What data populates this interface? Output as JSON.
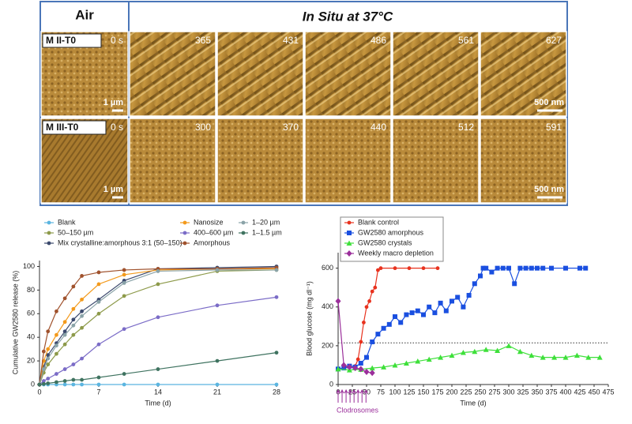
{
  "image_panel": {
    "header_air": "Air",
    "header_in_situ": "In Situ at 37°C",
    "rows": [
      {
        "label": "M II-T0",
        "times": [
          "0 s",
          "365",
          "431",
          "486",
          "561",
          "627"
        ],
        "scale_air": "1 µm",
        "scale_in_situ": "500 nm"
      },
      {
        "label": "M III-T0",
        "times": [
          "0 s",
          "300",
          "370",
          "440",
          "512",
          "591"
        ],
        "scale_air": "1 µm",
        "scale_in_situ": "500 nm"
      }
    ]
  },
  "chart_data": [
    {
      "type": "line",
      "x_label": "Time (d)",
      "y_label": "Cumulative GW2580 release (%)",
      "x": [
        0,
        0.5,
        1,
        2,
        3,
        4,
        5,
        7,
        10,
        14,
        21,
        28
      ],
      "xlim": [
        0,
        28
      ],
      "xticks": [
        0,
        7,
        14,
        21,
        28
      ],
      "ylim": [
        0,
        105
      ],
      "yticks": [
        0,
        20,
        40,
        60,
        80,
        100
      ],
      "series": [
        {
          "name": "Blank",
          "color": "#5bb5e0",
          "values": [
            0,
            0,
            0,
            0,
            0,
            0,
            0,
            0,
            0,
            0,
            0,
            0
          ]
        },
        {
          "name": "50–150 µm",
          "color": "#8d9a4a",
          "values": [
            0,
            10,
            17,
            26,
            34,
            42,
            48,
            60,
            75,
            85,
            96,
            97
          ]
        },
        {
          "name": "Mix crystalline:amorphous 3:1 (50–150)",
          "color": "#3c4a6e",
          "values": [
            0,
            15,
            25,
            35,
            45,
            55,
            62,
            72,
            88,
            98,
            99,
            100
          ]
        },
        {
          "name": "Nanosize",
          "color": "#f39a1c",
          "values": [
            0,
            20,
            30,
            42,
            53,
            64,
            72,
            85,
            93,
            97,
            98,
            98
          ]
        },
        {
          "name": "400–600 µm",
          "color": "#7b6cc7",
          "values": [
            0,
            3,
            5,
            9,
            13,
            17,
            22,
            34,
            47,
            57,
            67,
            74
          ]
        },
        {
          "name": "Amorphous",
          "color": "#a0522d",
          "values": [
            0,
            28,
            45,
            62,
            73,
            83,
            92,
            95,
            97,
            98,
            98,
            99
          ]
        },
        {
          "name": "1–20 µm",
          "color": "#8aa3a8",
          "values": [
            0,
            13,
            22,
            33,
            42,
            50,
            58,
            70,
            86,
            96,
            97,
            97
          ]
        },
        {
          "name": "1–1.5 µm",
          "color": "#3f7360",
          "values": [
            0,
            0.5,
            1,
            2,
            3,
            4,
            4,
            6,
            9,
            13,
            20,
            27
          ]
        }
      ]
    },
    {
      "type": "line",
      "x_label": "Time (d)",
      "y_label": "Blood glucose (mg dl⁻¹)",
      "xlim": [
        0,
        475
      ],
      "xticks": [
        0,
        25,
        50,
        75,
        100,
        125,
        150,
        175,
        200,
        225,
        250,
        275,
        300,
        325,
        350,
        375,
        400,
        425,
        450,
        475
      ],
      "ylim": [
        0,
        680
      ],
      "yticks": [
        0,
        200,
        400,
        600
      ],
      "hline": 215,
      "annotation": "Clodrosomes",
      "annotation_days": [
        0,
        7,
        14,
        21,
        28,
        35,
        42,
        49
      ],
      "series": [
        {
          "name": "Blank control",
          "color": "#e8321e",
          "marker": "circle",
          "x": [
            0,
            10,
            20,
            30,
            35,
            40,
            45,
            50,
            55,
            60,
            65,
            70,
            75,
            100,
            125,
            150,
            175
          ],
          "values": [
            80,
            85,
            90,
            95,
            130,
            220,
            320,
            400,
            430,
            480,
            500,
            590,
            600,
            600,
            600,
            600,
            600
          ]
        },
        {
          "name": "GW2580 amorphous",
          "color": "#1a4fe0",
          "marker": "square",
          "x": [
            0,
            10,
            20,
            30,
            40,
            50,
            60,
            70,
            80,
            90,
            100,
            110,
            120,
            130,
            140,
            150,
            160,
            170,
            180,
            190,
            200,
            210,
            220,
            230,
            240,
            250,
            255,
            260,
            270,
            280,
            290,
            300,
            310,
            320,
            330,
            340,
            350,
            360,
            375,
            400,
            425,
            435
          ],
          "values": [
            80,
            85,
            95,
            90,
            110,
            140,
            220,
            260,
            290,
            310,
            350,
            320,
            360,
            370,
            380,
            360,
            400,
            370,
            420,
            380,
            430,
            450,
            400,
            460,
            520,
            560,
            600,
            600,
            580,
            600,
            600,
            600,
            520,
            600,
            600,
            600,
            600,
            600,
            600,
            600,
            600,
            600
          ]
        },
        {
          "name": "GW2580 crystals",
          "color": "#3ee03a",
          "marker": "triangle",
          "x": [
            0,
            20,
            40,
            60,
            80,
            100,
            120,
            140,
            160,
            180,
            200,
            220,
            240,
            260,
            280,
            300,
            320,
            340,
            360,
            380,
            400,
            420,
            440,
            460
          ],
          "values": [
            80,
            75,
            78,
            85,
            90,
            100,
            110,
            120,
            130,
            140,
            150,
            165,
            170,
            180,
            175,
            200,
            170,
            150,
            140,
            140,
            140,
            150,
            140,
            140
          ]
        },
        {
          "name": "Weekly macro depletion",
          "color": "#9b2f9b",
          "marker": "diamond",
          "x": [
            0,
            10,
            20,
            30,
            40,
            50,
            60
          ],
          "values": [
            430,
            100,
            90,
            85,
            80,
            65,
            60
          ]
        }
      ]
    }
  ]
}
